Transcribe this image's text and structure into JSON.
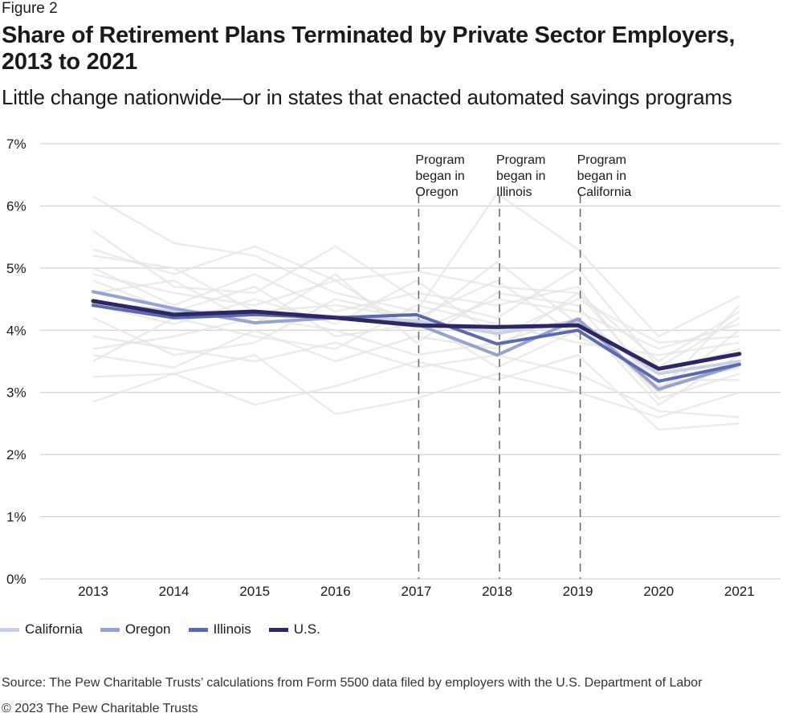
{
  "figure_label": "Figure 2",
  "title": "Share of Retirement Plans Terminated by Private Sector Employers, 2013 to 2021",
  "subtitle": "Little change nationwide—or in states that enacted automated savings programs",
  "source": "Source: The Pew Charitable Trusts’ calculations from Form 5500 data filed by employers with the U.S. Department of Labor",
  "copyright": "© 2023 The Pew Charitable Trusts",
  "colors": {
    "california": "#c9d0e8",
    "oregon": "#96a3cf",
    "illinois": "#5a6aad",
    "us": "#2e2660",
    "background_states": "#e6e4e1",
    "grid": "#c8c8c8"
  },
  "chart_data": {
    "type": "line",
    "title": "Share of Retirement Plans Terminated by Private Sector Employers, 2013 to 2021",
    "ylim": [
      0,
      7
    ],
    "y_ticks": [
      0,
      1,
      2,
      3,
      4,
      5,
      6,
      7
    ],
    "y_tick_labels": [
      "0%",
      "1%",
      "2%",
      "3%",
      "4%",
      "5%",
      "6%",
      "7%"
    ],
    "x": [
      "2013",
      "2014",
      "2015",
      "2016",
      "2017",
      "2018",
      "2019",
      "2020",
      "2021"
    ],
    "grid": true,
    "legend_position": "bottom-left",
    "series": [
      {
        "name": "California",
        "color": "#c9d0e8",
        "values": [
          4.45,
          4.3,
          4.28,
          4.22,
          4.15,
          3.95,
          4.15,
          3.3,
          3.5
        ]
      },
      {
        "name": "Oregon",
        "color": "#96a3cf",
        "values": [
          4.62,
          4.35,
          4.12,
          4.2,
          4.1,
          3.6,
          4.18,
          3.05,
          3.45
        ]
      },
      {
        "name": "Illinois",
        "color": "#5a6aad",
        "values": [
          4.4,
          4.2,
          4.25,
          4.2,
          4.25,
          3.78,
          4.0,
          3.18,
          3.45
        ]
      },
      {
        "name": "U.S.",
        "color": "#2e2660",
        "values": [
          4.47,
          4.25,
          4.3,
          4.2,
          4.08,
          4.05,
          4.08,
          3.38,
          3.62
        ]
      }
    ],
    "background_series": [
      [
        6.15,
        5.4,
        5.2,
        4.6,
        4.3,
        6.2,
        5.3,
        3.9,
        4.55
      ],
      [
        5.3,
        4.9,
        5.35,
        4.8,
        4.95,
        4.7,
        4.6,
        3.5,
        4.3
      ],
      [
        2.85,
        3.3,
        2.8,
        3.1,
        3.5,
        3.2,
        3.6,
        2.4,
        2.5
      ],
      [
        3.25,
        3.3,
        3.6,
        2.65,
        2.9,
        3.3,
        3.0,
        2.6,
        3.0
      ],
      [
        4.9,
        4.6,
        4.4,
        4.8,
        4.0,
        4.5,
        4.3,
        3.7,
        4.1
      ],
      [
        3.7,
        3.9,
        4.2,
        4.0,
        3.6,
        3.8,
        4.2,
        2.8,
        3.6
      ],
      [
        4.2,
        3.6,
        3.8,
        4.5,
        4.2,
        3.4,
        4.0,
        3.2,
        3.2
      ],
      [
        5.0,
        4.4,
        4.9,
        4.3,
        4.6,
        4.4,
        4.7,
        3.0,
        4.0
      ],
      [
        3.5,
        4.2,
        3.9,
        3.7,
        4.4,
        4.1,
        3.8,
        3.6,
        3.8
      ],
      [
        4.6,
        4.8,
        4.1,
        4.9,
        3.8,
        4.6,
        4.4,
        2.9,
        3.3
      ],
      [
        5.6,
        4.7,
        4.6,
        5.35,
        4.5,
        4.2,
        5.0,
        3.4,
        4.2
      ],
      [
        3.9,
        3.7,
        3.5,
        3.8,
        3.4,
        3.6,
        3.3,
        2.7,
        2.6
      ],
      [
        4.4,
        4.1,
        4.5,
        4.1,
        4.8,
        3.9,
        4.5,
        3.8,
        3.9
      ],
      [
        5.2,
        5.0,
        4.3,
        4.4,
        4.2,
        4.8,
        3.9,
        3.3,
        3.7
      ],
      [
        3.6,
        3.4,
        4.0,
        3.5,
        3.9,
        3.7,
        4.6,
        3.1,
        3.4
      ],
      [
        4.8,
        4.3,
        4.7,
        3.9,
        4.1,
        5.1,
        4.1,
        3.0,
        4.4
      ]
    ],
    "annotations": [
      {
        "x": "2017",
        "lines": [
          "Program",
          "began in",
          "Oregon"
        ]
      },
      {
        "x": "2018",
        "lines": [
          "Program",
          "began in",
          "Illinois"
        ]
      },
      {
        "x": "2019",
        "lines": [
          "Program",
          "began in",
          "California"
        ]
      }
    ]
  }
}
